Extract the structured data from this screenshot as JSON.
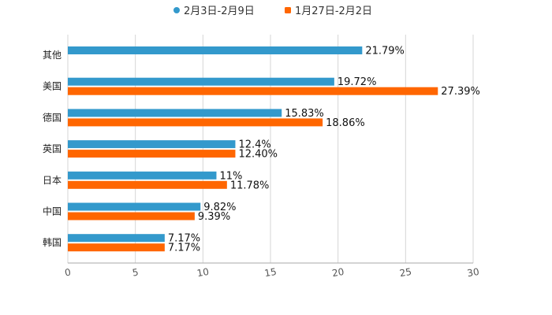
{
  "chart_data": {
    "type": "bar",
    "orientation": "horizontal",
    "title": "",
    "xlabel": "",
    "ylabel": "",
    "xlim": [
      0,
      30
    ],
    "x_ticks": [
      0,
      5,
      10,
      15,
      20,
      25,
      30
    ],
    "x_tick_labels": [
      "0",
      "5",
      "10",
      "15",
      "20",
      "25",
      "30"
    ],
    "grid": true,
    "legend_position": "top-center",
    "categories": [
      "其他",
      "美国",
      "德国",
      "英国",
      "日本",
      "中国",
      "韩国"
    ],
    "series": [
      {
        "name": "2月3日-2月9日",
        "color": "#3399cc",
        "values": [
          21.79,
          19.72,
          15.83,
          12.4,
          11,
          9.82,
          7.17
        ],
        "labels": [
          "21.79%",
          "19.72%",
          "15.83%",
          "12.4%",
          "11%",
          "9.82%",
          "7.17%"
        ]
      },
      {
        "name": "1月27日-2月2日",
        "color": "#ff6600",
        "values": [
          null,
          27.39,
          18.86,
          12.4,
          11.78,
          9.39,
          7.17
        ],
        "labels": [
          null,
          "27.39%",
          "18.86%",
          "12.40%",
          "11.78%",
          "9.39%",
          "7.17%"
        ]
      }
    ]
  }
}
